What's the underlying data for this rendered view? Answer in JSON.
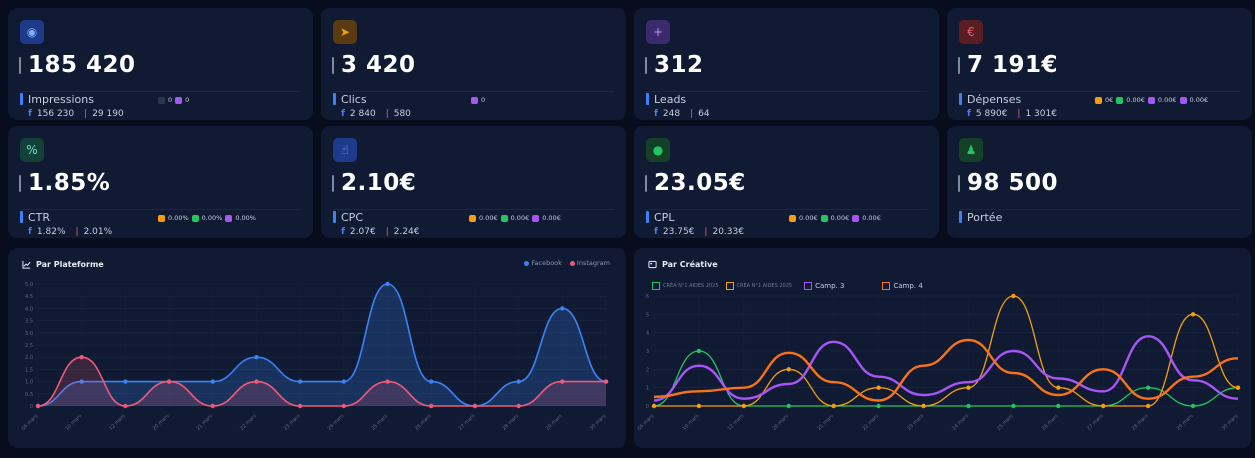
{
  "kpis": [
    {
      "value": "185 420",
      "label": "Impressions",
      "fb": "156 230",
      "ig": "29 190",
      "extra": [
        "0",
        "0"
      ]
    },
    {
      "value": "3 420",
      "label": "Clics",
      "fb": "2 840",
      "ig": "580",
      "extra": [
        "0"
      ]
    },
    {
      "value": "312",
      "label": "Leads",
      "fb": "248",
      "ig": "64",
      "extra": []
    },
    {
      "value": "7 191€",
      "label": "Dépenses",
      "fb": "5 890€",
      "ig": "1 301€",
      "extra": [
        "0€",
        "0.00€",
        "0.00€",
        "0.00€"
      ]
    },
    {
      "value": "1.85%",
      "label": "CTR",
      "fb": "1.82%",
      "ig": "2.01%",
      "extra": [
        "0.00%",
        "0.00%",
        "0.00%"
      ]
    },
    {
      "value": "2.10€",
      "label": "CPC",
      "fb": "2.07€",
      "ig": "2.24€",
      "extra": [
        "0.00€",
        "0.00€",
        "0.00€"
      ]
    },
    {
      "value": "23.05€",
      "label": "CPL",
      "fb": "23.75€",
      "ig": "20.33€",
      "extra": [
        "0.00€",
        "0.00€",
        "0.00€"
      ]
    },
    {
      "value": "98 500",
      "label": "Portée",
      "fb": "",
      "ig": "",
      "extra": []
    }
  ],
  "icons": [
    "eye-icon",
    "cursor-icon",
    "user-plus-icon",
    "euro-icon",
    "percent-icon",
    "pointer-hand-icon",
    "circle-icon",
    "users-icon"
  ],
  "colors": {
    "facebook": "#3b82f6",
    "instagram": "#f05a78",
    "crea1": "#22c55e",
    "crea2": "#f59e0b",
    "camp3": "#a855f7",
    "camp4": "#f97316",
    "bg": "#070d1c",
    "card": "#101b33"
  },
  "platform_chart": {
    "title": "Par Plateforme",
    "legend": [
      "Facebook",
      "Instagram"
    ]
  },
  "creative_chart": {
    "title": "Par Créative",
    "legend": [
      "CRÉA N°1 AIDES 2025",
      "CRÉA N°1 AIDES 2025",
      "Camp. 3",
      "Camp. 4"
    ]
  },
  "chart_data": [
    {
      "type": "line",
      "title": "Par Plateforme",
      "x": [
        "06 mars",
        "10 mars",
        "12 mars",
        "20 mars",
        "21 mars",
        "22 mars",
        "23 mars",
        "24 mars",
        "25 mars",
        "26 mars",
        "27 mars",
        "28 mars",
        "29 mars",
        "30 mars"
      ],
      "ylim": [
        0,
        5
      ],
      "yticks": [
        "0",
        "0.5",
        "1.0",
        "1.5",
        "2.0",
        "2.5",
        "3.0",
        "3.5",
        "4.0",
        "4.5",
        "5.0"
      ],
      "series": [
        {
          "name": "Facebook",
          "values": [
            0,
            1,
            1,
            1,
            1,
            2,
            1,
            1,
            5,
            1,
            0,
            1,
            4,
            1
          ]
        },
        {
          "name": "Instagram",
          "values": [
            0,
            2,
            0,
            1,
            0,
            1,
            0,
            0,
            1,
            0,
            0,
            0,
            1,
            1
          ]
        }
      ]
    },
    {
      "type": "line",
      "title": "Par Créative",
      "x": [
        "06 mars",
        "10 mars",
        "12 mars",
        "20 mars",
        "21 mars",
        "22 mars",
        "23 mars",
        "24 mars",
        "25 mars",
        "26 mars",
        "27 mars",
        "28 mars",
        "29 mars",
        "30 mars"
      ],
      "ylim": [
        0,
        6
      ],
      "yticks": [
        "0",
        "1",
        "2",
        "3",
        "4",
        "5",
        "6"
      ],
      "series": [
        {
          "name": "CRÉA N°1 AIDES 2025",
          "values": [
            0,
            3,
            0,
            0,
            0,
            0,
            0,
            0,
            0,
            0,
            0,
            1,
            0,
            1
          ]
        },
        {
          "name": "CRÉA N°1 AIDES 2025",
          "values": [
            0,
            0,
            0,
            2,
            0,
            1,
            0,
            1,
            6,
            1,
            0,
            0,
            5,
            1
          ]
        },
        {
          "name": "Camp. 3",
          "values": [
            0.3,
            2.2,
            0.4,
            1.2,
            3.5,
            1.6,
            0.6,
            1.3,
            3.0,
            1.5,
            0.8,
            3.8,
            1.4,
            0.4
          ]
        },
        {
          "name": "Camp. 4",
          "values": [
            0.5,
            0.8,
            1.0,
            2.9,
            1.3,
            0.3,
            2.2,
            3.6,
            1.8,
            0.6,
            2.0,
            0.4,
            1.6,
            2.6
          ]
        }
      ]
    }
  ]
}
